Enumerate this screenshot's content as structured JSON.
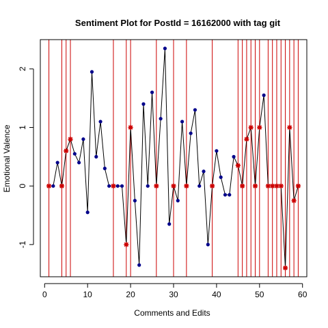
{
  "chart_data": {
    "type": "scatter",
    "title": "Sentiment Plot for PostId =  16162000  with tag  git",
    "xlabel": "Comments and Edits",
    "ylabel": "Emotional Valence",
    "xlim": [
      -1,
      61
    ],
    "ylim": [
      -1.55,
      2.5
    ],
    "x_ticks": [
      0,
      10,
      20,
      30,
      40,
      50,
      60
    ],
    "y_ticks": [
      -1,
      0,
      1,
      2
    ],
    "grid": false,
    "legend": "none",
    "colors": {
      "line": "#000000",
      "comment": "#00008B",
      "edit": "#CC0000",
      "edit_line": "#CC0000"
    },
    "series": [
      {
        "type": "line",
        "points": [
          {
            "x": 1,
            "y": 0,
            "kind": "edit"
          },
          {
            "x": 2,
            "y": 0,
            "kind": "comment"
          },
          {
            "x": 3,
            "y": 0.4,
            "kind": "comment"
          },
          {
            "x": 4,
            "y": 0,
            "kind": "edit"
          },
          {
            "x": 5,
            "y": 0.6,
            "kind": "edit"
          },
          {
            "x": 6,
            "y": 0.8,
            "kind": "edit"
          },
          {
            "x": 7,
            "y": 0.55,
            "kind": "comment"
          },
          {
            "x": 8,
            "y": 0.4,
            "kind": "comment"
          },
          {
            "x": 9,
            "y": 0.8,
            "kind": "comment"
          },
          {
            "x": 10,
            "y": -0.45,
            "kind": "comment"
          },
          {
            "x": 11,
            "y": 1.95,
            "kind": "comment"
          },
          {
            "x": 12,
            "y": 0.5,
            "kind": "comment"
          },
          {
            "x": 13,
            "y": 1.1,
            "kind": "comment"
          },
          {
            "x": 14,
            "y": 0.3,
            "kind": "comment"
          },
          {
            "x": 15,
            "y": 0,
            "kind": "comment"
          },
          {
            "x": 16,
            "y": 0,
            "kind": "edit"
          },
          {
            "x": 17,
            "y": 0,
            "kind": "comment"
          },
          {
            "x": 18,
            "y": 0,
            "kind": "comment"
          },
          {
            "x": 19,
            "y": -1,
            "kind": "edit"
          },
          {
            "x": 20,
            "y": 1,
            "kind": "edit"
          },
          {
            "x": 21,
            "y": -0.25,
            "kind": "comment"
          },
          {
            "x": 22,
            "y": -1.35,
            "kind": "comment"
          },
          {
            "x": 23,
            "y": 1.4,
            "kind": "comment"
          },
          {
            "x": 24,
            "y": 0,
            "kind": "comment"
          },
          {
            "x": 25,
            "y": 1.6,
            "kind": "comment"
          },
          {
            "x": 26,
            "y": 0,
            "kind": "edit"
          },
          {
            "x": 27,
            "y": 1.15,
            "kind": "comment"
          },
          {
            "x": 28,
            "y": 2.35,
            "kind": "comment"
          },
          {
            "x": 29,
            "y": -0.65,
            "kind": "comment"
          },
          {
            "x": 30,
            "y": 0,
            "kind": "edit"
          },
          {
            "x": 31,
            "y": -0.25,
            "kind": "comment"
          },
          {
            "x": 32,
            "y": 1.1,
            "kind": "comment"
          },
          {
            "x": 33,
            "y": 0,
            "kind": "edit"
          },
          {
            "x": 34,
            "y": 0.9,
            "kind": "comment"
          },
          {
            "x": 35,
            "y": 1.3,
            "kind": "comment"
          },
          {
            "x": 36,
            "y": 0,
            "kind": "comment"
          },
          {
            "x": 37,
            "y": 0.25,
            "kind": "comment"
          },
          {
            "x": 38,
            "y": -1,
            "kind": "comment"
          },
          {
            "x": 39,
            "y": 0,
            "kind": "edit"
          },
          {
            "x": 40,
            "y": 0.6,
            "kind": "comment"
          },
          {
            "x": 41,
            "y": 0.15,
            "kind": "comment"
          },
          {
            "x": 42,
            "y": -0.15,
            "kind": "comment"
          },
          {
            "x": 43,
            "y": -0.15,
            "kind": "comment"
          },
          {
            "x": 44,
            "y": 0.5,
            "kind": "comment"
          },
          {
            "x": 45,
            "y": 0.35,
            "kind": "edit"
          },
          {
            "x": 46,
            "y": 0,
            "kind": "edit"
          },
          {
            "x": 47,
            "y": 0.8,
            "kind": "edit"
          },
          {
            "x": 48,
            "y": 1,
            "kind": "edit"
          },
          {
            "x": 49,
            "y": 0,
            "kind": "edit"
          },
          {
            "x": 50,
            "y": 1,
            "kind": "edit"
          },
          {
            "x": 51,
            "y": 1.55,
            "kind": "comment"
          },
          {
            "x": 52,
            "y": 0,
            "kind": "edit"
          },
          {
            "x": 53,
            "y": 0,
            "kind": "edit"
          },
          {
            "x": 54,
            "y": 0,
            "kind": "edit"
          },
          {
            "x": 55,
            "y": 0,
            "kind": "edit"
          },
          {
            "x": 56,
            "y": -1.4,
            "kind": "edit"
          },
          {
            "x": 57,
            "y": 1,
            "kind": "edit"
          },
          {
            "x": 58,
            "y": -0.25,
            "kind": "edit"
          },
          {
            "x": 59,
            "y": 0,
            "kind": "edit"
          }
        ]
      }
    ],
    "vertical_lines_x": [
      1,
      4,
      5,
      6,
      16,
      19,
      20,
      26,
      30,
      33,
      39,
      45,
      46,
      47,
      48,
      49,
      50,
      52,
      53,
      54,
      55,
      56,
      57,
      58,
      59
    ]
  }
}
